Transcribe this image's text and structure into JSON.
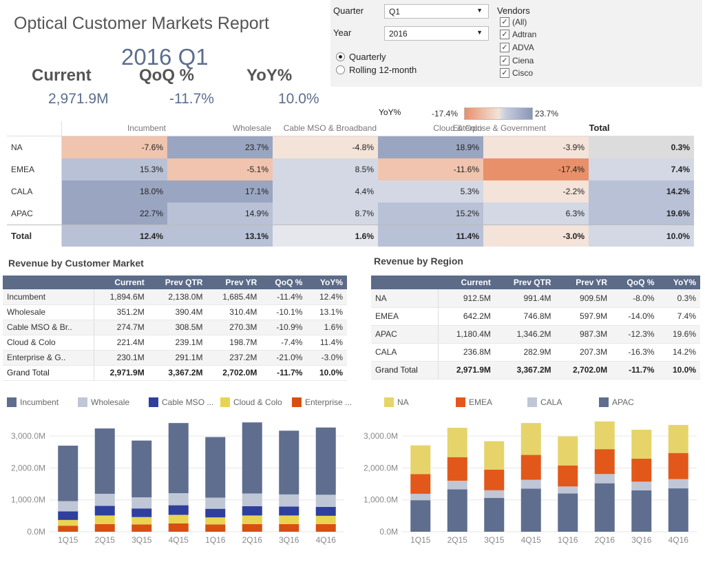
{
  "header": {
    "title": "Optical Customer Markets Report",
    "period": "2016 Q1",
    "kpis": [
      {
        "label": "Current",
        "value": "2,971.9M"
      },
      {
        "label": "QoQ %",
        "value": "-11.7%"
      },
      {
        "label": "YoY%",
        "value": "10.0%"
      }
    ]
  },
  "filters": {
    "quarter_label": "Quarter",
    "quarter_value": "Q1",
    "year_label": "Year",
    "year_value": "2016",
    "radio_options": [
      "Quarterly",
      "Rolling 12-month"
    ],
    "radio_selected": "Quarterly",
    "vendors_label": "Vendors",
    "vendors": [
      "(All)",
      "Adtran",
      "ADVA",
      "Ciena",
      "Cisco"
    ]
  },
  "heatmap": {
    "legend_label": "YoY%",
    "legend_min": "-17.4%",
    "legend_max": "23.7%",
    "columns": [
      "Incumbent",
      "Wholesale",
      "Cable MSO & Broadband",
      "Cloud & Colo",
      "Enterprise & Government",
      "Total"
    ],
    "rows": [
      {
        "label": "NA",
        "values": [
          "-7.6%",
          "23.7%",
          "-4.8%",
          "18.9%",
          "-3.9%",
          "0.3%"
        ]
      },
      {
        "label": "EMEA",
        "values": [
          "15.3%",
          "-5.1%",
          "8.5%",
          "-11.6%",
          "-17.4%",
          "7.4%"
        ]
      },
      {
        "label": "CALA",
        "values": [
          "18.0%",
          "17.1%",
          "4.4%",
          "5.3%",
          "-2.2%",
          "14.2%"
        ]
      },
      {
        "label": "APAC",
        "values": [
          "22.7%",
          "14.9%",
          "8.7%",
          "15.2%",
          "6.3%",
          "19.6%"
        ]
      },
      {
        "label": "Total",
        "values": [
          "12.4%",
          "13.1%",
          "1.6%",
          "11.4%",
          "-3.0%",
          "10.0%"
        ]
      }
    ],
    "colors": {
      "strong_neg": "#e8906a",
      "neg": "#f0c4ae",
      "light_neg": "#f3e3d8",
      "neutral": "#e6e7ec",
      "light_pos": "#d3d8e4",
      "pos": "#b9c1d6",
      "strong_pos": "#9aa5c1",
      "total_col": "#dcdcdc"
    }
  },
  "market_table": {
    "title": "Revenue by Customer Market",
    "columns": [
      "",
      "Current",
      "Prev QTR",
      "Prev YR",
      "QoQ %",
      "YoY%"
    ],
    "rows": [
      [
        "Incumbent",
        "1,894.6M",
        "2,138.0M",
        "1,685.4M",
        "-11.4%",
        "12.4%"
      ],
      [
        "Wholesale",
        "351.2M",
        "390.4M",
        "310.4M",
        "-10.1%",
        "13.1%"
      ],
      [
        "Cable MSO & Br..",
        "274.7M",
        "308.5M",
        "270.3M",
        "-10.9%",
        "1.6%"
      ],
      [
        "Cloud & Colo",
        "221.4M",
        "239.1M",
        "198.7M",
        "-7.4%",
        "11.4%"
      ],
      [
        "Enterprise & G..",
        "230.1M",
        "291.1M",
        "237.2M",
        "-21.0%",
        "-3.0%"
      ],
      [
        "Grand Total",
        "2,971.9M",
        "3,367.2M",
        "2,702.0M",
        "-11.7%",
        "10.0%"
      ]
    ]
  },
  "region_table": {
    "title": "Revenue by Region",
    "columns": [
      "",
      "Current",
      "Prev QTR",
      "Prev YR",
      "QoQ %",
      "YoY%"
    ],
    "rows": [
      [
        "NA",
        "912.5M",
        "991.4M",
        "909.5M",
        "-8.0%",
        "0.3%"
      ],
      [
        "EMEA",
        "642.2M",
        "746.8M",
        "597.9M",
        "-14.0%",
        "7.4%"
      ],
      [
        "APAC",
        "1,180.4M",
        "1,346.2M",
        "987.3M",
        "-12.3%",
        "19.6%"
      ],
      [
        "CALA",
        "236.8M",
        "282.9M",
        "207.3M",
        "-16.3%",
        "14.2%"
      ],
      [
        "Grand Total",
        "2,971.9M",
        "3,367.2M",
        "2,702.0M",
        "-11.7%",
        "10.0%"
      ]
    ]
  },
  "chart_data": [
    {
      "type": "bar",
      "stacked": true,
      "categories": [
        "1Q15",
        "2Q15",
        "3Q15",
        "4Q15",
        "1Q16",
        "2Q16",
        "3Q16",
        "4Q16"
      ],
      "ylim": [
        0,
        3500
      ],
      "yticks": [
        "0.0M",
        "1,000.0M",
        "2,000.0M",
        "3,000.0M"
      ],
      "ytick_values": [
        0,
        1000,
        2000,
        3000
      ],
      "series": [
        {
          "name": "Enterprise ...",
          "color": "#d84f12",
          "values": [
            190,
            240,
            230,
            260,
            230,
            240,
            240,
            240
          ]
        },
        {
          "name": "Cloud & Colo",
          "color": "#e9d452",
          "values": [
            180,
            270,
            230,
            270,
            220,
            270,
            270,
            260
          ]
        },
        {
          "name": "Cable MSO ...",
          "color": "#2e3f9e",
          "values": [
            270,
            300,
            270,
            300,
            270,
            290,
            280,
            280
          ]
        },
        {
          "name": "Wholesale",
          "color": "#bfc6d6",
          "values": [
            320,
            380,
            350,
            380,
            350,
            400,
            380,
            380
          ]
        },
        {
          "name": "Incumbent",
          "color": "#5f6e8f",
          "values": [
            1740,
            2050,
            1780,
            2200,
            1900,
            2230,
            2000,
            2110
          ]
        }
      ]
    },
    {
      "type": "bar",
      "stacked": true,
      "categories": [
        "1Q15",
        "2Q15",
        "3Q15",
        "4Q15",
        "1Q16",
        "2Q16",
        "3Q16",
        "4Q16"
      ],
      "ylim": [
        0,
        3500
      ],
      "yticks": [
        "0.0M",
        "1,000.0M",
        "2,000.0M",
        "3,000.0M"
      ],
      "ytick_values": [
        0,
        1000,
        2000,
        3000
      ],
      "series": [
        {
          "name": "APAC",
          "color": "#5f6e8f",
          "values": [
            990,
            1330,
            1060,
            1350,
            1200,
            1520,
            1300,
            1360
          ]
        },
        {
          "name": "CALA",
          "color": "#bfc6d6",
          "values": [
            200,
            270,
            240,
            280,
            220,
            290,
            270,
            290
          ]
        },
        {
          "name": "EMEA",
          "color": "#e2581a",
          "values": [
            620,
            740,
            650,
            780,
            660,
            780,
            720,
            820
          ]
        },
        {
          "name": "NA",
          "color": "#e6d46a",
          "values": [
            900,
            920,
            890,
            1000,
            910,
            870,
            910,
            880
          ]
        }
      ]
    }
  ],
  "legends": {
    "market": [
      {
        "name": "Incumbent",
        "color": "#5f6e8f"
      },
      {
        "name": "Wholesale",
        "color": "#bfc6d6"
      },
      {
        "name": "Cable MSO ...",
        "color": "#2e3f9e"
      },
      {
        "name": "Cloud & Colo",
        "color": "#e9d452"
      },
      {
        "name": "Enterprise ...",
        "color": "#d84f12"
      }
    ],
    "region": [
      {
        "name": "NA",
        "color": "#e6d46a"
      },
      {
        "name": "EMEA",
        "color": "#e2581a"
      },
      {
        "name": "CALA",
        "color": "#bfc6d6"
      },
      {
        "name": "APAC",
        "color": "#5f6e8f"
      }
    ]
  }
}
